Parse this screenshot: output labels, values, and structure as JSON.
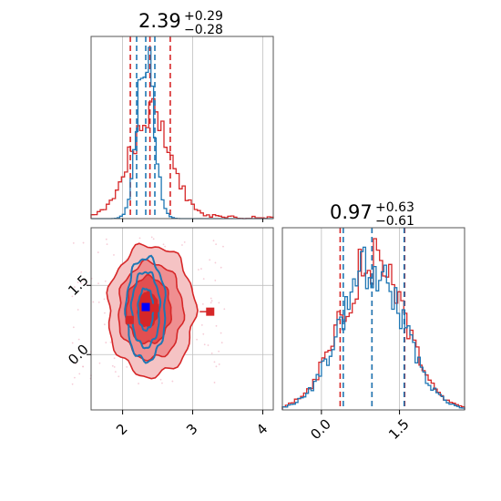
{
  "colors": {
    "red": "#d62728",
    "blue": "#1f77b4",
    "grid": "#bfbfbf",
    "frame": "#555555"
  },
  "chart_data": {
    "type": "corner",
    "parameters": [
      "",
      ""
    ],
    "panels": [
      {
        "id": "hist-param1",
        "type": "histogram",
        "title": {
          "median": "2.39",
          "plus": "+0.29",
          "minus": "−0.28"
        },
        "xlim": [
          1.55,
          4.15
        ],
        "xticks": [
          2,
          3,
          4
        ],
        "grid_x": [
          2,
          3,
          4
        ],
        "series": [
          {
            "name": "",
            "color": "#d62728",
            "center": 2.39,
            "sigma": 0.29,
            "quantiles": [
              2.11,
              2.68
            ]
          },
          {
            "name": "",
            "color": "#1f77b4",
            "center": 2.33,
            "sigma": 0.12,
            "quantiles": [
              2.2,
              2.46
            ]
          }
        ]
      },
      {
        "id": "hist-param2",
        "type": "histogram",
        "title": {
          "median": "0.97",
          "plus": "+0.63",
          "minus": "−0.61"
        },
        "xlim": [
          -0.75,
          2.75
        ],
        "xticks": [
          0.0,
          1.5
        ],
        "xtick_labels": [
          "0.0",
          "1.5"
        ],
        "grid_x": [
          0.0,
          1.5
        ],
        "series": [
          {
            "name": "",
            "color": "#d62728",
            "center": 0.97,
            "sigma": 0.62,
            "quantiles": [
              0.36,
              1.6
            ]
          },
          {
            "name": "",
            "color": "#1f77b4",
            "center": 0.97,
            "sigma": 0.6,
            "quantiles": [
              0.42,
              1.59
            ]
          }
        ]
      },
      {
        "id": "joint-param1-param2",
        "type": "contour",
        "xlim": [
          1.55,
          4.15
        ],
        "ylim": [
          -1.2,
          2.75
        ],
        "xticks": [
          2,
          3,
          4
        ],
        "yticks": [
          0.0,
          1.5
        ],
        "ytick_labels": [
          "0.0",
          "1.5"
        ],
        "grid_x": [
          2,
          3,
          4
        ],
        "grid_y": [
          0.0,
          1.5
        ],
        "red_levels": [
          {
            "cx": 2.41,
            "cy": 0.95,
            "rx": 0.62,
            "ry": 1.42,
            "fill": "#f5c3c4"
          },
          {
            "cx": 2.4,
            "cy": 0.95,
            "rx": 0.46,
            "ry": 1.05,
            "fill": "#ef8f91"
          },
          {
            "cx": 2.37,
            "cy": 0.96,
            "rx": 0.32,
            "ry": 0.72,
            "fill": "#e24f51"
          },
          {
            "cx": 2.36,
            "cy": 0.98,
            "rx": 0.14,
            "ry": 0.38,
            "fill": "#d62728"
          }
        ],
        "blue_levels": [
          {
            "cx": 2.33,
            "cy": 0.98,
            "rx": 0.28,
            "ry": 1.12
          },
          {
            "cx": 2.33,
            "cy": 0.98,
            "rx": 0.2,
            "ry": 0.82
          },
          {
            "cx": 2.33,
            "cy": 0.98,
            "rx": 0.11,
            "ry": 0.45
          }
        ],
        "markers": [
          {
            "x": 2.1,
            "y": 0.75,
            "color": "#d62728"
          },
          {
            "x": 2.46,
            "y": 1.01,
            "color": "#d62728"
          },
          {
            "x": 3.25,
            "y": 0.93,
            "color": "#d62728"
          },
          {
            "x": 2.33,
            "y": 1.03,
            "color": "#0000ff"
          }
        ]
      }
    ]
  }
}
